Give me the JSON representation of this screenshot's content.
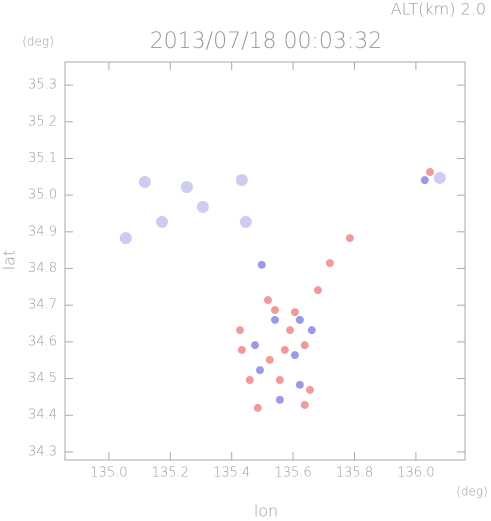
{
  "chart_data": {
    "type": "scatter",
    "title": "2013/07/18 00:03:32",
    "subtitle": "ALT(km) 2.0",
    "x_label": "lon",
    "y_label": "lat",
    "x_unit": "(deg)",
    "y_unit": "(deg)",
    "xlim": [
      134.857,
      136.16
    ],
    "ylim": [
      34.278,
      35.363
    ],
    "xticks": [
      {
        "value": 135,
        "label": "135.0"
      },
      135.2,
      135.4,
      135.6,
      135.8,
      {
        "value": 136,
        "label": "136.0"
      }
    ],
    "yticks": [
      34.3,
      34.4,
      34.5,
      34.6,
      34.7,
      34.8,
      34.9,
      {
        "value": 35,
        "label": "35.0"
      },
      35.1,
      35.2,
      35.3
    ],
    "series": [
      {
        "color": "#c4c4ee",
        "x": [
          135.117,
          135.254,
          135.433,
          135.446,
          135.055,
          135.306,
          135.173,
          136.078
        ],
        "values": [
          35.036,
          35.022,
          35.041,
          34.927,
          34.883,
          34.968,
          34.927,
          35.047
        ]
      },
      {
        "color": "#8888e8",
        "x": [
          135.476,
          135.541,
          135.622,
          135.606,
          135.492,
          135.622,
          135.498,
          135.557,
          135.661,
          136.029
        ],
        "values": [
          34.591,
          34.66,
          34.66,
          34.564,
          34.523,
          34.483,
          34.81,
          34.442,
          34.632,
          35.041
        ]
      },
      {
        "color": "#ee8888",
        "x": [
          135.427,
          135.518,
          135.59,
          135.573,
          135.524,
          135.638,
          135.557,
          135.655,
          135.459,
          135.433,
          135.485,
          135.638,
          135.541,
          135.606,
          135.785,
          135.72,
          135.681,
          136.046
        ],
        "values": [
          34.632,
          34.714,
          34.632,
          34.578,
          34.551,
          34.591,
          34.496,
          34.469,
          34.496,
          34.578,
          34.42,
          34.428,
          34.687,
          34.681,
          34.883,
          34.815,
          34.741,
          35.063
        ]
      }
    ]
  }
}
